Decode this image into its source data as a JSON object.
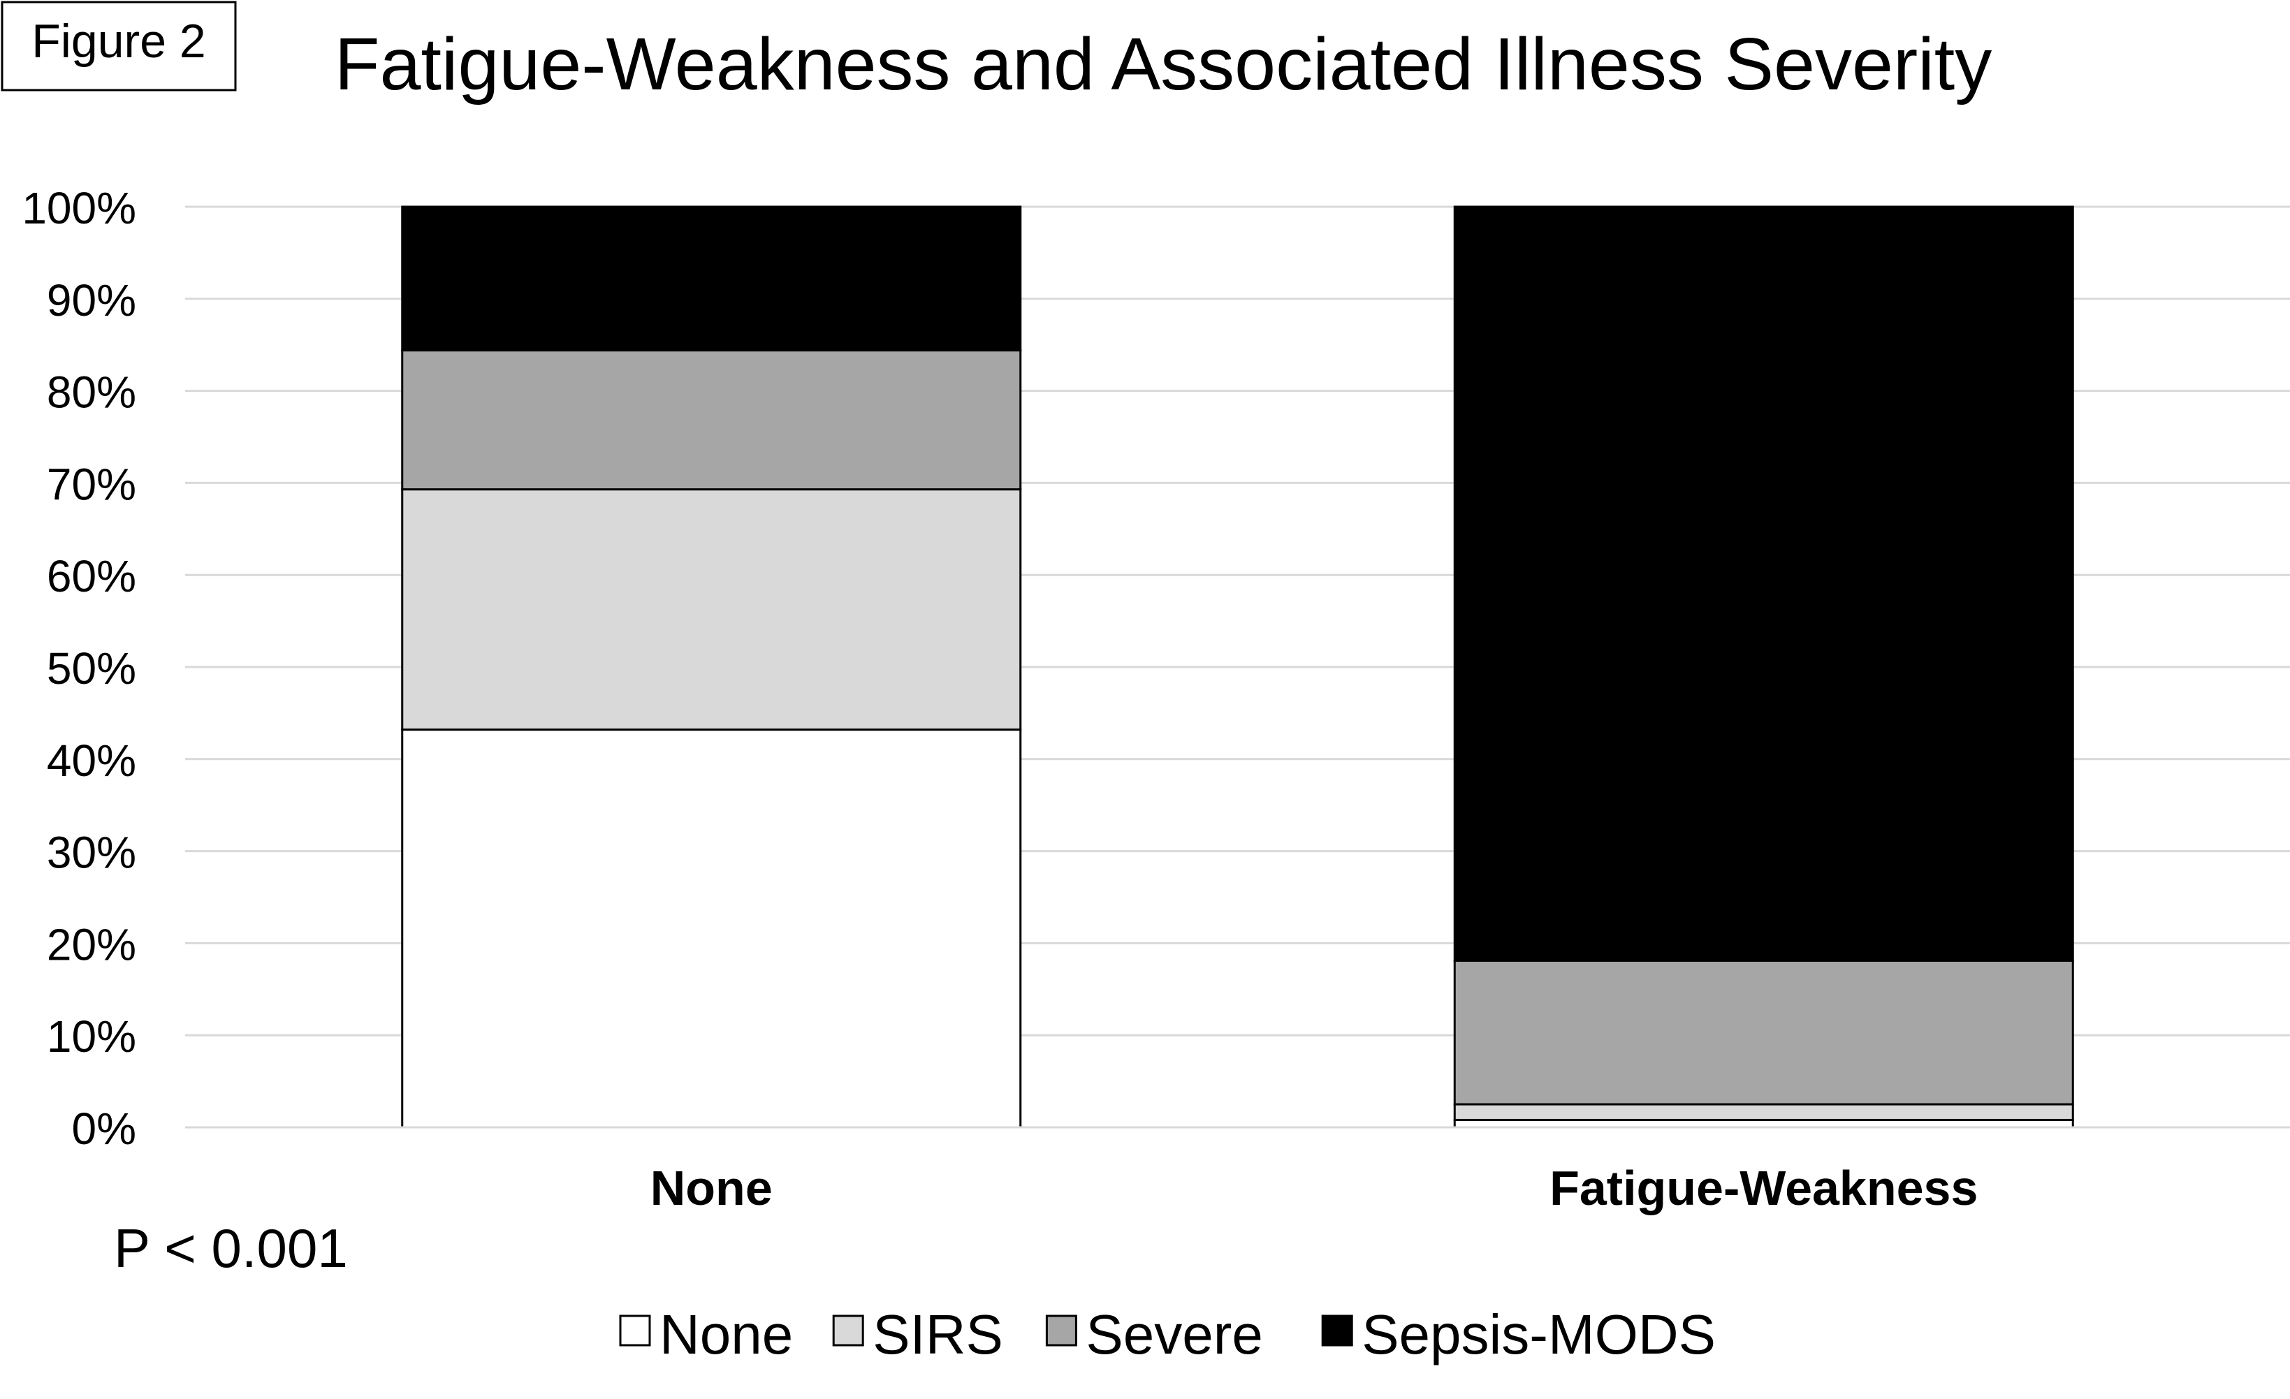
{
  "figure_label": "Figure 2",
  "p_value_text": "P < 0.001",
  "chart_data": {
    "type": "bar",
    "stacked": true,
    "title": "Fatigue-Weakness and Associated Illness Severity",
    "xlabel": "",
    "ylabel": "",
    "ylim": [
      0,
      100
    ],
    "y_ticks": [
      "0%",
      "10%",
      "20%",
      "30%",
      "40%",
      "50%",
      "60%",
      "70%",
      "80%",
      "90%",
      "100%"
    ],
    "grid": true,
    "legend_position": "bottom",
    "categories": [
      "None",
      "Fatigue-Weakness"
    ],
    "series": [
      {
        "name": "None",
        "color": "#ffffff",
        "values": [
          43.2,
          0.8
        ]
      },
      {
        "name": "SIRS",
        "color": "#d9d9d9",
        "values": [
          26.1,
          1.7
        ]
      },
      {
        "name": "Severe",
        "color": "#a6a6a6",
        "values": [
          15.1,
          15.6
        ]
      },
      {
        "name": "Sepsis-MODS",
        "color": "#000000",
        "values": [
          15.6,
          81.9
        ]
      }
    ]
  }
}
